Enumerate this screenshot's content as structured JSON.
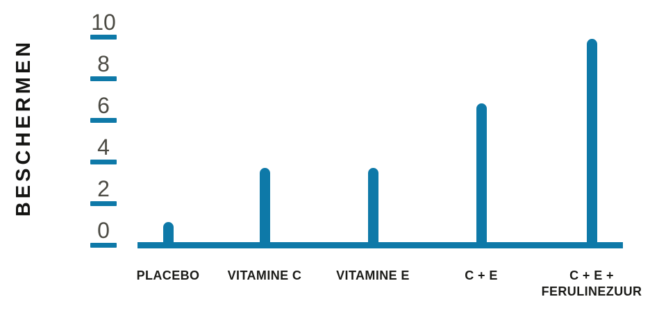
{
  "chart_data": {
    "type": "bar",
    "title": "",
    "xlabel": "",
    "ylabel": "BESCHERMEN",
    "categories": [
      "PLACEBO",
      "VITAMINE C",
      "VITAMINE E",
      "C + E",
      "C + E +\nFERULINEZUUR"
    ],
    "values": [
      1.1,
      3.7,
      3.7,
      6.8,
      9.9
    ],
    "yticks": [
      0,
      2,
      4,
      6,
      8,
      10
    ],
    "ylim": [
      0,
      10
    ],
    "grid": false,
    "legend_position": "none",
    "bar_color": "#0E79A8",
    "axis_color": "#0E79A8",
    "tick_mark_color": "#0E79A8",
    "tick_label_color": "#4B4A43",
    "category_label_color": "#1B1B18",
    "ylabel_color": "#141412",
    "background_color": "#FFFFFF"
  }
}
